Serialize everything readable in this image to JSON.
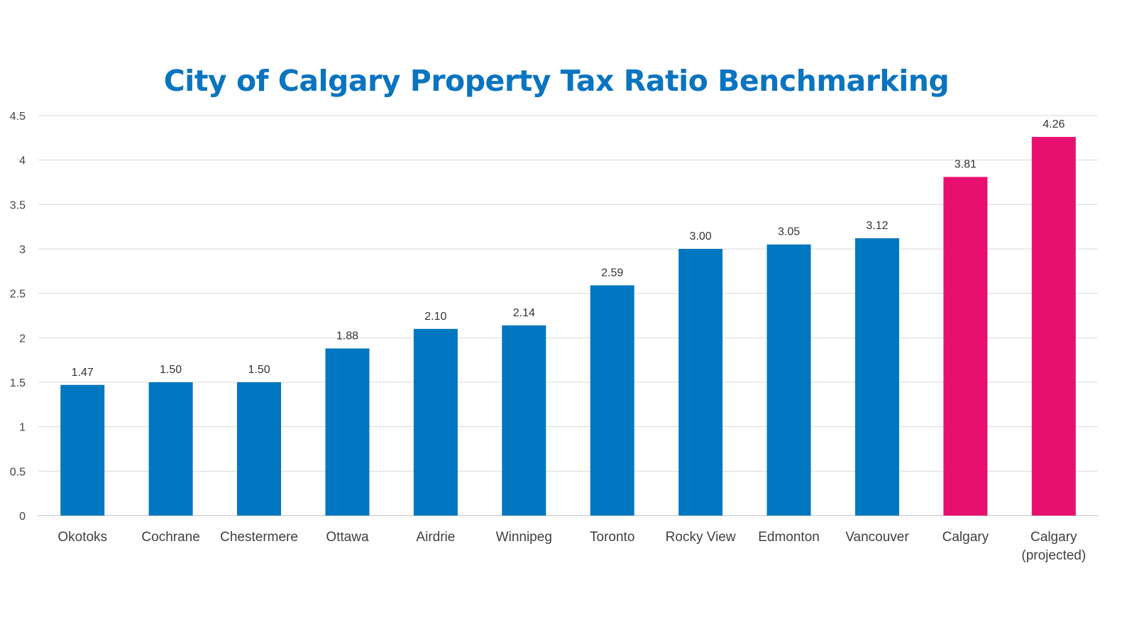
{
  "chart_data": {
    "type": "bar",
    "title": "City of Calgary Property Tax Ratio Benchmarking",
    "xlabel": "",
    "ylabel": "",
    "ylim": [
      0,
      4.5
    ],
    "yticks": [
      "0",
      "0.5",
      "1",
      "1.5",
      "2",
      "2.5",
      "3",
      "3.5",
      "4",
      "4.5"
    ],
    "grid": true,
    "categories": [
      "Okotoks",
      "Cochrane",
      "Chestermere",
      "Ottawa",
      "Airdrie",
      "Winnipeg",
      "Toronto",
      "Rocky View",
      "Edmonton",
      "Vancouver",
      "Calgary",
      "Calgary\n(projected)"
    ],
    "values": [
      1.47,
      1.5,
      1.5,
      1.88,
      2.1,
      2.14,
      2.59,
      3.0,
      3.05,
      3.12,
      3.81,
      4.26
    ],
    "value_labels": [
      "1.47",
      "1.50",
      "1.50",
      "1.88",
      "2.10",
      "2.14",
      "2.59",
      "3.00",
      "3.05",
      "3.12",
      "3.81",
      "4.26"
    ],
    "colors": [
      "#0077c0",
      "#0077c0",
      "#0077c0",
      "#0077c0",
      "#0077c0",
      "#0077c0",
      "#0077c0",
      "#0077c0",
      "#0077c0",
      "#0077c0",
      "#e8106f",
      "#e8106f"
    ]
  }
}
